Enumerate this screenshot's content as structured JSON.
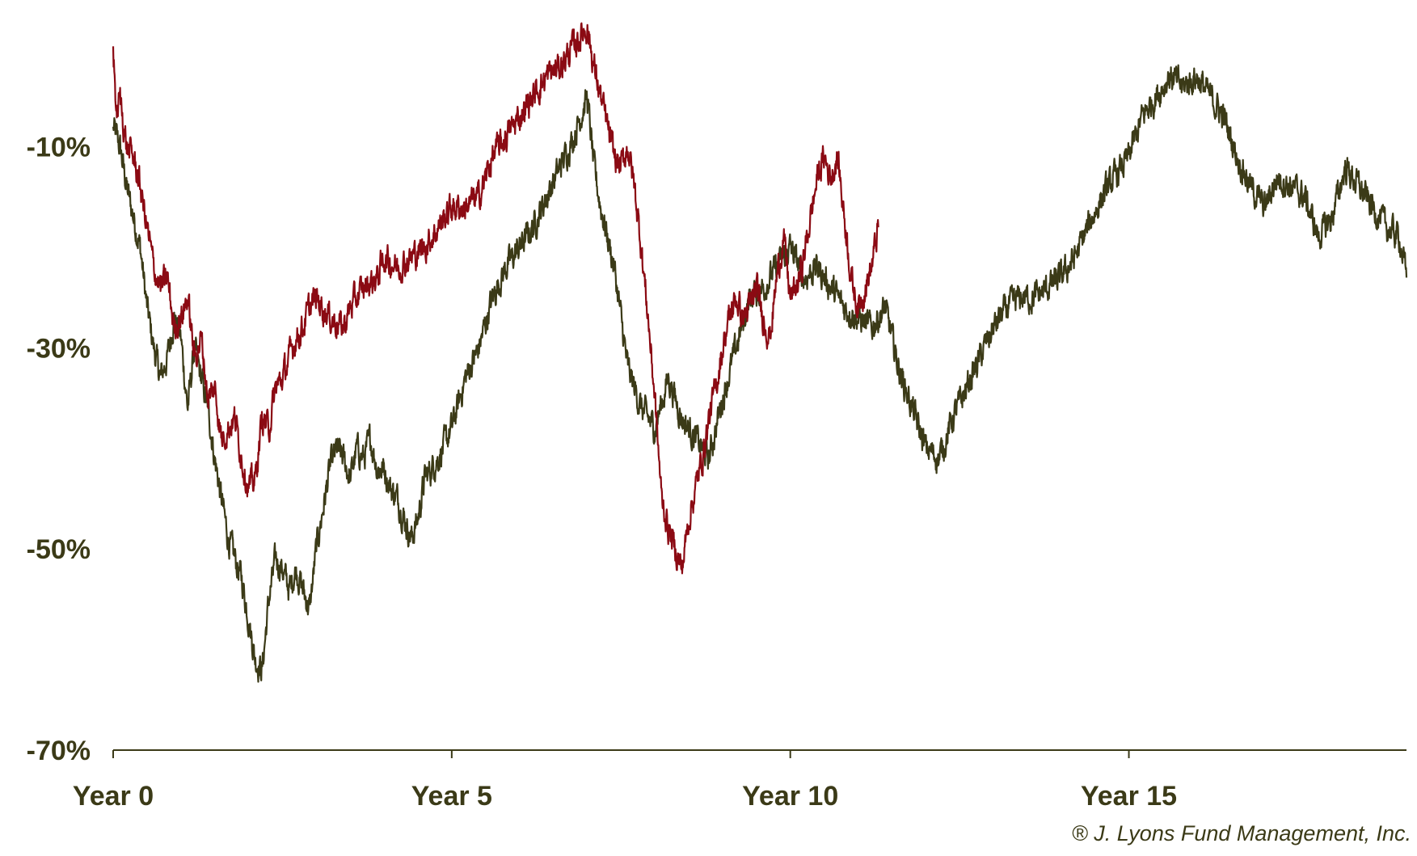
{
  "chart_data": {
    "type": "line",
    "title": "",
    "xlabel": "",
    "ylabel": "",
    "x_ticks": [
      {
        "value": 0,
        "label": "Year 0"
      },
      {
        "value": 5,
        "label": "Year 5"
      },
      {
        "value": 10,
        "label": "Year 10"
      },
      {
        "value": 15,
        "label": "Year 15"
      }
    ],
    "y_ticks": [
      {
        "value": -10,
        "label": "-10%"
      },
      {
        "value": -30,
        "label": "-30%"
      },
      {
        "value": -50,
        "label": "-50%"
      },
      {
        "value": -70,
        "label": "-70%"
      }
    ],
    "xlim": [
      0,
      19.1
    ],
    "ylim": [
      -70,
      3
    ],
    "grid": false,
    "legend": "none",
    "copyright": "® J. Lyons Fund Management, Inc.",
    "series": [
      {
        "color": "#8b0a13",
        "x": [
          0.0,
          0.05,
          0.1,
          0.2,
          0.3,
          0.4,
          0.5,
          0.6,
          0.7,
          0.8,
          0.9,
          1.0,
          1.1,
          1.2,
          1.3,
          1.4,
          1.5,
          1.6,
          1.7,
          1.8,
          1.9,
          2.0,
          2.1,
          2.2,
          2.3,
          2.4,
          2.5,
          2.6,
          2.7,
          2.8,
          2.9,
          3.0,
          3.2,
          3.4,
          3.5,
          3.7,
          3.9,
          4.0,
          4.2,
          4.4,
          4.6,
          4.8,
          5.0,
          5.2,
          5.4,
          5.6,
          5.8,
          6.0,
          6.2,
          6.4,
          6.6,
          6.8,
          6.9,
          7.0,
          7.1,
          7.2,
          7.3,
          7.4,
          7.5,
          7.6,
          7.7,
          7.8,
          7.9,
          8.0,
          8.1,
          8.2,
          8.3,
          8.4,
          8.5,
          8.6,
          8.7,
          8.8,
          8.9,
          9.0,
          9.1,
          9.2,
          9.3,
          9.4,
          9.5,
          9.6,
          9.7,
          9.8,
          9.9,
          10.0,
          10.1,
          10.2,
          10.3,
          10.4,
          10.5,
          10.6,
          10.7,
          10.8,
          10.9,
          11.0,
          11.1,
          11.2,
          11.3
        ],
        "values": [
          0.0,
          -7.0,
          -5.0,
          -10.0,
          -11.0,
          -14.0,
          -18.0,
          -22.0,
          -24.0,
          -23.0,
          -28.0,
          -27.0,
          -25.0,
          -31.0,
          -29.0,
          -35.0,
          -34.0,
          -39.0,
          -38.0,
          -37.0,
          -41.0,
          -44.0,
          -43.0,
          -37.0,
          -38.0,
          -34.0,
          -33.0,
          -31.0,
          -29.0,
          -28.0,
          -26.0,
          -25.0,
          -27.0,
          -28.0,
          -26.0,
          -24.0,
          -23.0,
          -21.0,
          -22.0,
          -21.0,
          -20.0,
          -18.0,
          -16.0,
          -16.0,
          -15.0,
          -11.0,
          -9.0,
          -7.0,
          -5.0,
          -3.0,
          -2.0,
          0.0,
          1.0,
          2.0,
          -2.0,
          -5.0,
          -8.0,
          -11.0,
          -12.0,
          -10.0,
          -14.0,
          -20.0,
          -27.0,
          -35.0,
          -45.0,
          -48.0,
          -50.0,
          -52.0,
          -47.0,
          -44.0,
          -41.0,
          -37.0,
          -34.0,
          -30.0,
          -27.0,
          -25.0,
          -27.0,
          -26.0,
          -24.0,
          -27.0,
          -29.0,
          -23.0,
          -19.0,
          -25.0,
          -24.0,
          -21.0,
          -17.0,
          -13.0,
          -11.0,
          -13.0,
          -11.0,
          -17.0,
          -23.0,
          -26.0,
          -24.0,
          -22.0,
          -18.0
        ]
      },
      {
        "color": "#3b3a17",
        "x": [
          0.0,
          0.1,
          0.2,
          0.3,
          0.4,
          0.5,
          0.6,
          0.7,
          0.8,
          0.9,
          1.0,
          1.1,
          1.2,
          1.3,
          1.4,
          1.5,
          1.6,
          1.7,
          1.8,
          1.9,
          2.0,
          2.1,
          2.2,
          2.3,
          2.4,
          2.5,
          2.6,
          2.7,
          2.8,
          2.9,
          3.0,
          3.1,
          3.2,
          3.3,
          3.4,
          3.5,
          3.6,
          3.7,
          3.8,
          3.9,
          4.0,
          4.1,
          4.2,
          4.3,
          4.4,
          4.5,
          4.6,
          4.8,
          5.0,
          5.2,
          5.4,
          5.6,
          5.8,
          6.0,
          6.2,
          6.4,
          6.6,
          6.8,
          7.0,
          7.1,
          7.2,
          7.4,
          7.6,
          7.8,
          8.0,
          8.2,
          8.4,
          8.6,
          8.8,
          9.0,
          9.2,
          9.4,
          9.6,
          9.8,
          10.0,
          10.2,
          10.4,
          10.6,
          10.8,
          11.0,
          11.2,
          11.4,
          11.6,
          11.8,
          12.0,
          12.2,
          12.4,
          12.6,
          12.8,
          13.0,
          13.2,
          13.4,
          13.6,
          13.8,
          14.0,
          14.2,
          14.4,
          14.6,
          14.8,
          15.0,
          15.2,
          15.4,
          15.6,
          15.8,
          16.0,
          16.2,
          16.4,
          16.6,
          16.8,
          17.0,
          17.2,
          17.4,
          17.6,
          17.8,
          18.0,
          18.2,
          18.4,
          18.6,
          18.8,
          19.0,
          19.1
        ],
        "values": [
          -8.0,
          -10.0,
          -14.0,
          -17.0,
          -20.0,
          -26.0,
          -30.0,
          -33.0,
          -31.0,
          -27.0,
          -29.0,
          -36.0,
          -30.0,
          -33.0,
          -36.0,
          -41.0,
          -45.0,
          -49.0,
          -51.0,
          -53.0,
          -57.0,
          -61.0,
          -62.0,
          -55.0,
          -51.0,
          -52.0,
          -54.0,
          -52.0,
          -54.0,
          -56.0,
          -50.0,
          -46.0,
          -42.0,
          -40.0,
          -41.0,
          -43.0,
          -40.0,
          -41.0,
          -39.0,
          -42.0,
          -42.0,
          -44.0,
          -45.0,
          -47.0,
          -49.0,
          -47.0,
          -43.0,
          -41.0,
          -38.0,
          -33.0,
          -30.0,
          -25.0,
          -22.0,
          -20.0,
          -18.0,
          -15.0,
          -12.0,
          -9.0,
          -5.0,
          -12.0,
          -16.0,
          -22.0,
          -32.0,
          -36.0,
          -38.0,
          -33.0,
          -37.0,
          -39.0,
          -41.0,
          -35.0,
          -30.0,
          -25.0,
          -24.0,
          -22.0,
          -20.0,
          -23.0,
          -22.0,
          -24.0,
          -26.0,
          -27.0,
          -28.0,
          -26.0,
          -32.0,
          -36.0,
          -40.0,
          -41.0,
          -37.0,
          -34.0,
          -31.0,
          -28.0,
          -26.0,
          -25.0,
          -25.0,
          -24.0,
          -23.0,
          -21.0,
          -18.0,
          -15.0,
          -13.0,
          -11.0,
          -7.0,
          -5.0,
          -3.0,
          -4.0,
          -3.0,
          -5.0,
          -7.0,
          -11.0,
          -14.0,
          -16.0,
          -13.0,
          -14.0,
          -15.0,
          -19.0,
          -17.0,
          -12.0,
          -14.0,
          -16.0,
          -18.0,
          -19.0,
          -23.0
        ]
      }
    ]
  }
}
